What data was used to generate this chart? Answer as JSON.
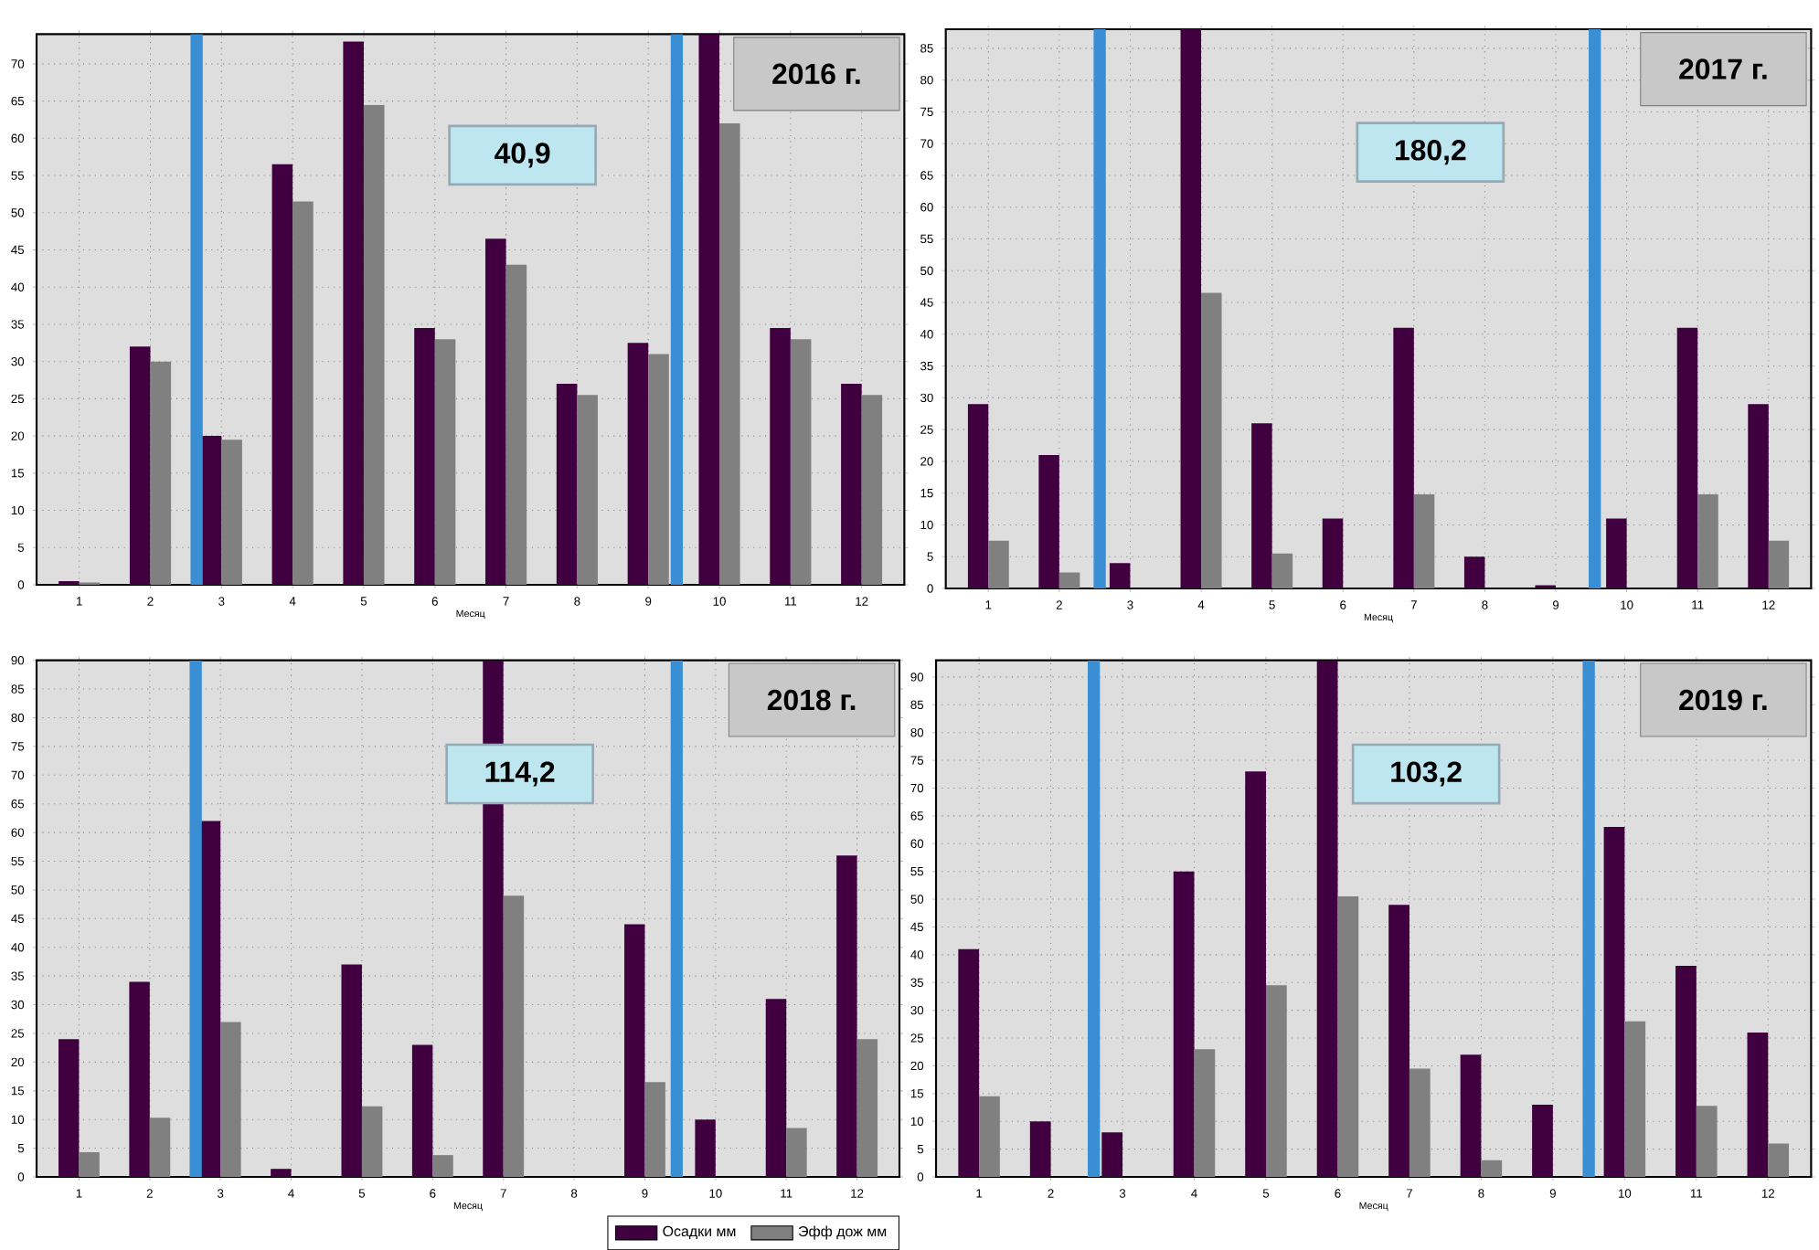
{
  "chart_data": [
    {
      "type": "bar",
      "title": "2016 г.",
      "xlabel": "Месяц",
      "x": [
        1,
        2,
        3,
        4,
        5,
        6,
        7,
        8,
        9,
        10,
        11,
        12
      ],
      "xlim": [
        0.4,
        12.6
      ],
      "xticks": [
        1,
        2,
        3,
        4,
        5,
        6,
        7,
        8,
        9,
        10,
        11,
        12
      ],
      "ylim": [
        0,
        74
      ],
      "yticks": [
        0,
        5,
        10,
        15,
        20,
        25,
        30,
        35,
        40,
        45,
        50,
        55,
        60,
        65,
        70
      ],
      "grid": true,
      "series": [
        {
          "color": "#400040",
          "values": [
            0.5,
            32,
            20,
            56.5,
            73,
            34.5,
            46.5,
            27,
            32.5,
            74,
            34.5,
            27
          ]
        },
        {
          "color": "#808080",
          "values": [
            0.3,
            30,
            19.5,
            51.5,
            64.5,
            33,
            43,
            25.5,
            31,
            62,
            33,
            25.5
          ]
        }
      ],
      "ref_lines": [
        {
          "axis": "x",
          "value": 2.65,
          "color": "#3a8ed4"
        },
        {
          "axis": "x",
          "value": 9.4,
          "color": "#3a8ed4"
        }
      ],
      "annotations": [
        "40,9"
      ]
    },
    {
      "type": "bar",
      "title": "2017 г.",
      "xlabel": "Месяц",
      "x": [
        1,
        2,
        3,
        4,
        5,
        6,
        7,
        8,
        9,
        10,
        11,
        12
      ],
      "xlim": [
        0.4,
        12.6
      ],
      "xticks": [
        1,
        2,
        3,
        4,
        5,
        6,
        7,
        8,
        9,
        10,
        11,
        12
      ],
      "ylim": [
        0,
        88
      ],
      "yticks": [
        0,
        5,
        10,
        15,
        20,
        25,
        30,
        35,
        40,
        45,
        50,
        55,
        60,
        65,
        70,
        75,
        80,
        85
      ],
      "grid": true,
      "series": [
        {
          "color": "#400040",
          "values": [
            29,
            21,
            4,
            88,
            26,
            11,
            41,
            5,
            0.5,
            11,
            41,
            29
          ]
        },
        {
          "color": "#808080",
          "values": [
            7.5,
            2.5,
            0,
            46.5,
            5.5,
            0,
            14.8,
            0,
            0,
            0,
            14.8,
            7.5
          ]
        }
      ],
      "ref_lines": [
        {
          "axis": "x",
          "value": 2.57,
          "color": "#3a8ed4"
        },
        {
          "axis": "x",
          "value": 9.55,
          "color": "#3a8ed4"
        }
      ],
      "annotations": [
        "180,2"
      ]
    },
    {
      "type": "bar",
      "title": "2018 г.",
      "xlabel": "Месяц",
      "x": [
        1,
        2,
        3,
        4,
        5,
        6,
        7,
        8,
        9,
        10,
        11,
        12
      ],
      "xlim": [
        0.4,
        12.6
      ],
      "xticks": [
        1,
        2,
        3,
        4,
        5,
        6,
        7,
        8,
        9,
        10,
        11,
        12
      ],
      "ylim": [
        0,
        90
      ],
      "yticks": [
        0,
        5,
        10,
        15,
        20,
        25,
        30,
        35,
        40,
        45,
        50,
        55,
        60,
        65,
        70,
        75,
        80,
        85,
        90
      ],
      "grid": true,
      "legend": "bottom right",
      "series": [
        {
          "name": "Осадки  мм",
          "color": "#400040",
          "values": [
            24,
            34,
            62,
            1.4,
            37,
            23,
            90,
            0,
            44,
            10,
            31,
            56
          ]
        },
        {
          "name": "Эфф дож  мм",
          "color": "#808080",
          "values": [
            4.3,
            10.3,
            27,
            0,
            12.3,
            3.8,
            49,
            0,
            16.5,
            0,
            8.5,
            24
          ]
        }
      ],
      "ref_lines": [
        {
          "axis": "x",
          "value": 2.65,
          "color": "#3a8ed4"
        },
        {
          "axis": "x",
          "value": 9.45,
          "color": "#3a8ed4"
        }
      ],
      "annotations": [
        "114,2"
      ]
    },
    {
      "type": "bar",
      "title": "2019 г.",
      "xlabel": "Месяц",
      "x": [
        1,
        2,
        3,
        4,
        5,
        6,
        7,
        8,
        9,
        10,
        11,
        12
      ],
      "xlim": [
        0.4,
        12.6
      ],
      "xticks": [
        1,
        2,
        3,
        4,
        5,
        6,
        7,
        8,
        9,
        10,
        11,
        12
      ],
      "ylim": [
        0,
        93
      ],
      "yticks": [
        0,
        5,
        10,
        15,
        20,
        25,
        30,
        35,
        40,
        45,
        50,
        55,
        60,
        65,
        70,
        75,
        80,
        85,
        90
      ],
      "grid": true,
      "series": [
        {
          "color": "#400040",
          "values": [
            41,
            10,
            8,
            55,
            73,
            93,
            49,
            22,
            13,
            63,
            38,
            26
          ]
        },
        {
          "color": "#808080",
          "values": [
            14.5,
            0,
            0,
            23,
            34.5,
            50.5,
            19.5,
            3,
            0,
            28,
            12.8,
            6
          ]
        }
      ],
      "ref_lines": [
        {
          "axis": "x",
          "value": 2.6,
          "color": "#3a8ed4"
        },
        {
          "axis": "x",
          "value": 9.5,
          "color": "#3a8ed4"
        }
      ],
      "annotations": [
        "103,2"
      ]
    }
  ]
}
